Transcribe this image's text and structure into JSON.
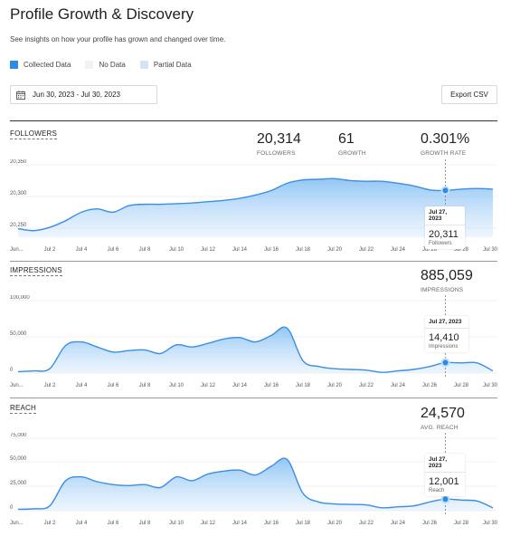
{
  "header": {
    "title": "Profile Growth & Discovery",
    "subtitle": "See insights on how your profile has grown and changed over time."
  },
  "legend": [
    {
      "label": "Collected Data",
      "color": "#2b8be6"
    },
    {
      "label": "No Data",
      "color": "#f2f2f2"
    },
    {
      "label": "Partial Data",
      "color": "#d6e3f0"
    }
  ],
  "toolbar": {
    "date_range": "Jun 30, 2023 - Jul 30, 2023",
    "export_label": "Export CSV"
  },
  "x_ticks": [
    "Jun...",
    "Jul 2",
    "Jul 4",
    "Jul 6",
    "Jul 8",
    "Jul 10",
    "Jul 12",
    "Jul 14",
    "Jul 16",
    "Jul 18",
    "Jul 20",
    "Jul 22",
    "Jul 24",
    "Jul 26",
    "Jul 28",
    "Jul 30"
  ],
  "followers": {
    "label": "FOLLOWERS",
    "metrics": [
      {
        "value": "20,314",
        "label": "FOLLOWERS"
      },
      {
        "value": "61",
        "label": "GROWTH"
      },
      {
        "value": "0.301%",
        "label": "GROWTH RATE"
      }
    ],
    "tooltip": {
      "date": "Jul 27, 2023",
      "value": "20,311",
      "label": "Followers"
    }
  },
  "impressions": {
    "label": "IMPRESSIONS",
    "metrics": [
      {
        "value": "885,059",
        "label": "IMPRESSIONS"
      }
    ],
    "tooltip": {
      "date": "Jul 27, 2023",
      "value": "14,410",
      "label": "Impressions"
    }
  },
  "reach": {
    "label": "REACH",
    "metrics": [
      {
        "value": "24,570",
        "label": "AVG. REACH"
      }
    ],
    "tooltip": {
      "date": "Jul 27, 2023",
      "value": "12,001",
      "label": "Reach"
    }
  },
  "chart_data": [
    {
      "type": "area",
      "ylabel": "",
      "y_ticks": [
        "20,350",
        "20,300",
        "20,250"
      ],
      "ylim": [
        20240,
        20350
      ],
      "x": [
        0,
        1,
        2,
        3,
        4,
        5,
        6,
        7,
        8,
        9,
        10,
        11,
        12,
        13,
        14,
        15,
        16,
        17,
        18,
        19,
        20,
        21,
        22,
        23,
        24,
        25,
        26,
        27,
        28,
        29,
        30
      ],
      "series": [
        {
          "values": [
            20253,
            20250,
            20255,
            20265,
            20278,
            20283,
            20278,
            20288,
            20290,
            20290,
            20291,
            20292,
            20294,
            20296,
            20299,
            20304,
            20311,
            20322,
            20327,
            20328,
            20329,
            20326,
            20325,
            20325,
            20322,
            20318,
            20312,
            20311,
            20313,
            20314,
            20313
          ]
        }
      ],
      "highlight": {
        "x": 27,
        "y": 20311
      }
    },
    {
      "type": "area",
      "ylabel": "",
      "y_ticks": [
        "100,000",
        "50,000",
        "0"
      ],
      "ylim": [
        0,
        100000
      ],
      "x": [
        0,
        1,
        2,
        3,
        4,
        5,
        6,
        7,
        8,
        9,
        10,
        11,
        12,
        13,
        14,
        15,
        16,
        17,
        18,
        19,
        20,
        21,
        22,
        23,
        24,
        25,
        26,
        27,
        28,
        29,
        30
      ],
      "series": [
        {
          "values": [
            2000,
            3000,
            6000,
            38000,
            43000,
            36000,
            29000,
            31000,
            32000,
            27000,
            39000,
            36000,
            41000,
            47000,
            49000,
            43000,
            52000,
            62000,
            17000,
            9000,
            6000,
            5000,
            4000,
            1000,
            3000,
            5000,
            9000,
            14410,
            14000,
            14000,
            3000
          ]
        }
      ],
      "highlight": {
        "x": 27,
        "y": 14410
      }
    },
    {
      "type": "area",
      "ylabel": "",
      "y_ticks": [
        "75,000",
        "50,000",
        "25,000",
        "0"
      ],
      "ylim": [
        0,
        75000
      ],
      "x": [
        0,
        1,
        2,
        3,
        4,
        5,
        6,
        7,
        8,
        9,
        10,
        11,
        12,
        13,
        14,
        15,
        16,
        17,
        18,
        19,
        20,
        21,
        22,
        23,
        24,
        25,
        26,
        27,
        28,
        29,
        30
      ],
      "series": [
        {
          "values": [
            1500,
            2000,
            5000,
            31000,
            35000,
            30000,
            27000,
            26000,
            27000,
            24000,
            35000,
            31000,
            38000,
            41000,
            42000,
            37000,
            46000,
            53000,
            18000,
            9000,
            7000,
            6500,
            6000,
            3000,
            4000,
            5000,
            9000,
            12001,
            11000,
            10000,
            3000
          ]
        }
      ],
      "highlight": {
        "x": 27,
        "y": 12001
      }
    }
  ]
}
